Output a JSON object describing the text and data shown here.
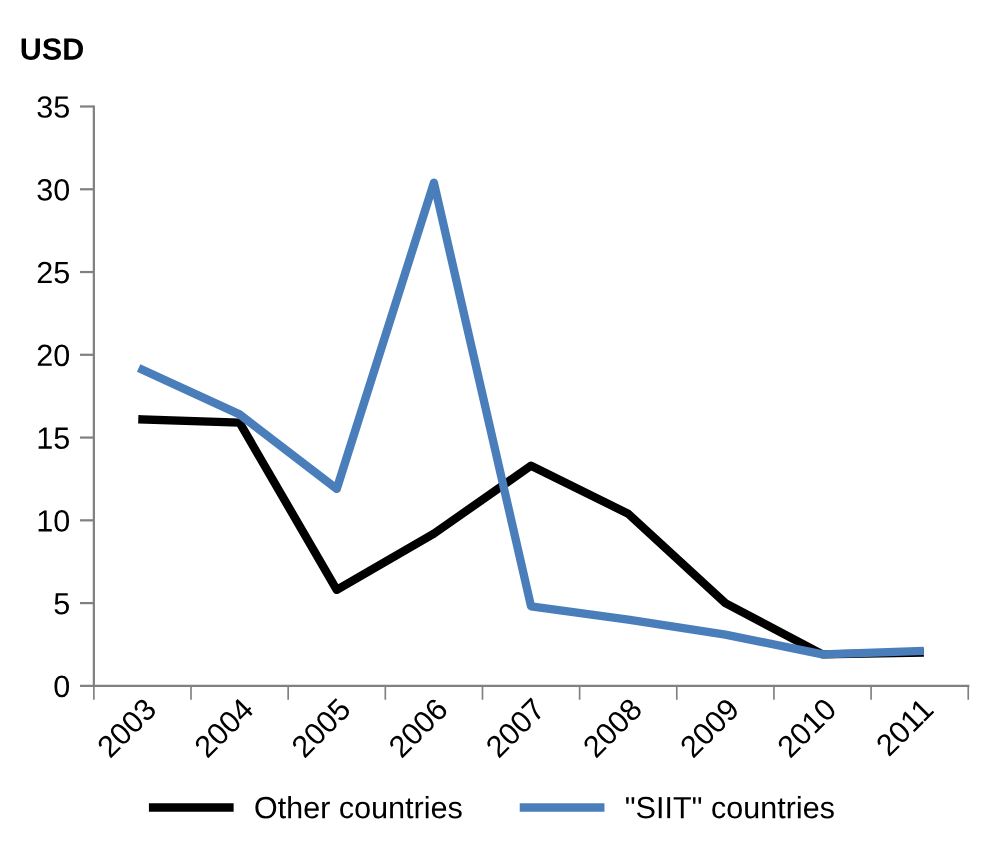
{
  "chart_data": {
    "type": "line",
    "ylabel": "USD",
    "categories": [
      "2003",
      "2004",
      "2005",
      "2006",
      "2007",
      "2008",
      "2009",
      "2010",
      "2011"
    ],
    "series": [
      {
        "name": "Other countries",
        "color": "#000000",
        "values": [
          16.1,
          15.9,
          5.8,
          9.2,
          13.3,
          10.4,
          5.0,
          1.9,
          2.0
        ]
      },
      {
        "name": "\"SIIT\" countries",
        "color": "#4a7ebb",
        "values": [
          19.1,
          16.4,
          11.9,
          30.4,
          4.8,
          4.0,
          3.1,
          1.9,
          2.1
        ]
      }
    ],
    "ylim": [
      0,
      35
    ],
    "yticks": [
      0,
      5,
      10,
      15,
      20,
      25,
      30,
      35
    ],
    "grid": false,
    "legend": "bottom",
    "marker": "none",
    "line_style": "solid"
  }
}
